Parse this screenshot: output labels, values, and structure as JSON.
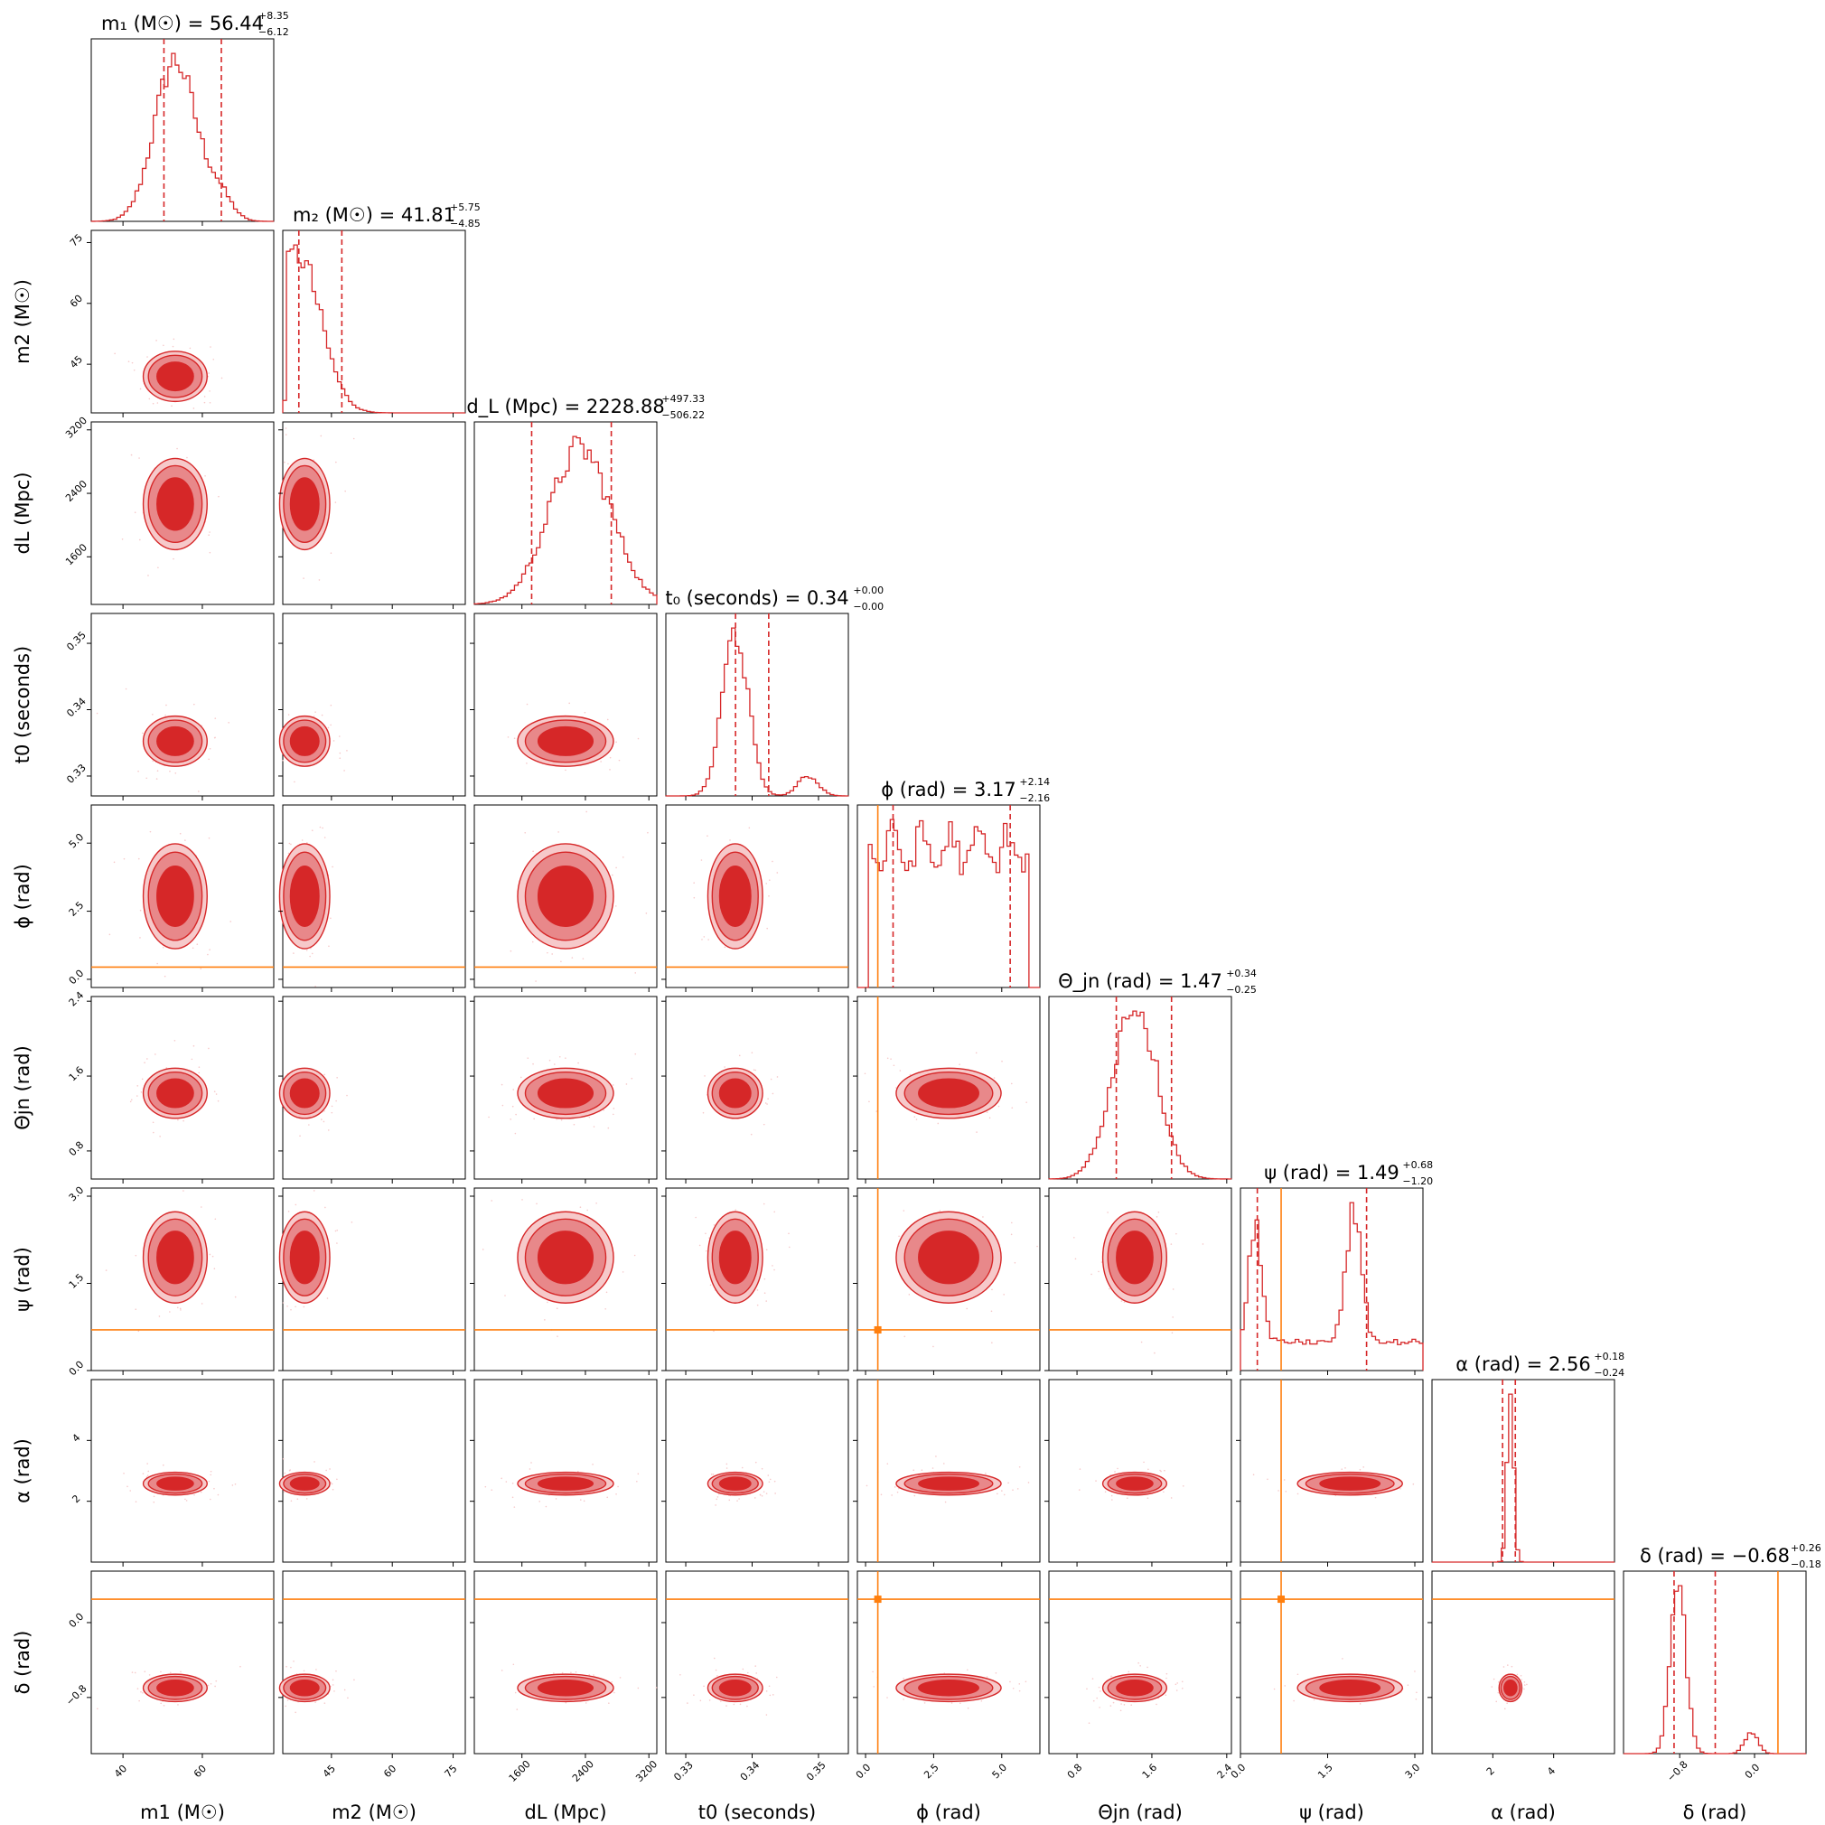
{
  "chart_data": {
    "type": "corner",
    "colors": {
      "posterior": "#d62728",
      "posterior_mid": "#e8888a",
      "posterior_light": "#f6c9ca",
      "truth": "#ff7f0e"
    },
    "parameters": [
      {
        "key": "m1",
        "label_base": "m",
        "label_sub": "1",
        "label_unit": " (M☉)",
        "title": "m₁ (M☉) = 56.44",
        "median": 56.44,
        "err_plus": "+8.35",
        "err_minus": "−6.12",
        "range": [
          32,
          78
        ],
        "ticks": [
          40,
          60
        ],
        "tick_labels": [
          "40",
          "60"
        ],
        "truth": null
      },
      {
        "key": "m2",
        "label_base": "m",
        "label_sub": "2",
        "label_unit": " (M☉)",
        "title": "m₂ (M☉) = 41.81",
        "median": 41.81,
        "err_plus": "+5.75",
        "err_minus": "−4.85",
        "range": [
          33,
          78
        ],
        "ticks": [
          45,
          60,
          75
        ],
        "tick_labels": [
          "45",
          "60",
          "75"
        ],
        "truth": null
      },
      {
        "key": "dL",
        "label_base": "d",
        "label_sub": "L",
        "label_unit": " (Mpc)",
        "title": "d_L (Mpc) = 2228.88",
        "median": 2228.88,
        "err_plus": "+497.33",
        "err_minus": "−506.22",
        "range": [
          1000,
          3300
        ],
        "ticks": [
          1600,
          2400,
          3200
        ],
        "tick_labels": [
          "1600",
          "2400",
          "3200"
        ],
        "truth": null
      },
      {
        "key": "t0",
        "label_base": "t",
        "label_sub": "0",
        "label_unit": " (seconds)",
        "title": "t₀ (seconds) = 0.34",
        "median": 0.34,
        "err_plus": "+0.00",
        "err_minus": "−0.00",
        "range": [
          0.327,
          0.3545
        ],
        "ticks": [
          0.33,
          0.34,
          0.35
        ],
        "tick_labels": [
          "0.33",
          "0.34",
          "0.35"
        ],
        "truth": null
      },
      {
        "key": "phi",
        "label_base": "ϕ",
        "label_sub": "",
        "label_unit": " (rad)",
        "title": "ϕ (rad) = 3.17",
        "median": 3.17,
        "err_plus": "+2.14",
        "err_minus": "−2.16",
        "range": [
          -0.3,
          6.4
        ],
        "ticks": [
          0.0,
          2.5,
          5.0
        ],
        "tick_labels": [
          "0.0",
          "2.5",
          "5.0"
        ],
        "truth": 0.45
      },
      {
        "key": "theta",
        "label_base": "Θ",
        "label_sub": "jn",
        "label_unit": " (rad)",
        "title": "Θ_jn (rad) = 1.47",
        "median": 1.47,
        "err_plus": "+0.34",
        "err_minus": "−0.25",
        "range": [
          0.5,
          2.45
        ],
        "ticks": [
          0.8,
          1.6,
          2.4
        ],
        "tick_labels": [
          "0.8",
          "1.6",
          "2.4"
        ],
        "truth": null
      },
      {
        "key": "psi",
        "label_base": "ψ",
        "label_sub": "",
        "label_unit": " (rad)",
        "title": "ψ (rad) = 1.49",
        "median": 1.49,
        "err_plus": "+0.68",
        "err_minus": "−1.20",
        "range": [
          0.0,
          3.14
        ],
        "ticks": [
          0.0,
          1.5,
          3.0
        ],
        "tick_labels": [
          "0.0",
          "1.5",
          "3.0"
        ],
        "truth": 0.7
      },
      {
        "key": "alpha",
        "label_base": "α",
        "label_sub": "",
        "label_unit": " (rad)",
        "title": "α (rad) = 2.56",
        "median": 2.56,
        "err_plus": "+0.18",
        "err_minus": "−0.24",
        "range": [
          0.0,
          6.0
        ],
        "ticks": [
          2,
          4
        ],
        "tick_labels": [
          "2",
          "4"
        ],
        "truth": null
      },
      {
        "key": "delta",
        "label_base": "δ",
        "label_sub": "",
        "label_unit": " (rad)",
        "title": "δ (rad) = −0.68",
        "median": -0.68,
        "err_plus": "+0.26",
        "err_minus": "−0.18",
        "range": [
          -1.4,
          0.55
        ],
        "ticks": [
          -0.8,
          0.0
        ],
        "tick_labels": [
          "−0.8",
          "0.0"
        ],
        "truth": 0.25
      }
    ],
    "quantiles": {
      "m1": [
        50.32,
        64.79
      ],
      "m2": [
        36.96,
        47.56
      ],
      "dL": [
        1722.66,
        2726.21
      ],
      "t0": [
        0.3375,
        0.3425
      ],
      "phi": [
        1.01,
        5.31
      ],
      "theta": [
        1.22,
        1.81
      ],
      "psi": [
        0.29,
        2.17
      ],
      "alpha": [
        2.32,
        2.74
      ],
      "delta": [
        -0.86,
        -0.42
      ]
    },
    "title_y_ticks_on_axis": true
  }
}
